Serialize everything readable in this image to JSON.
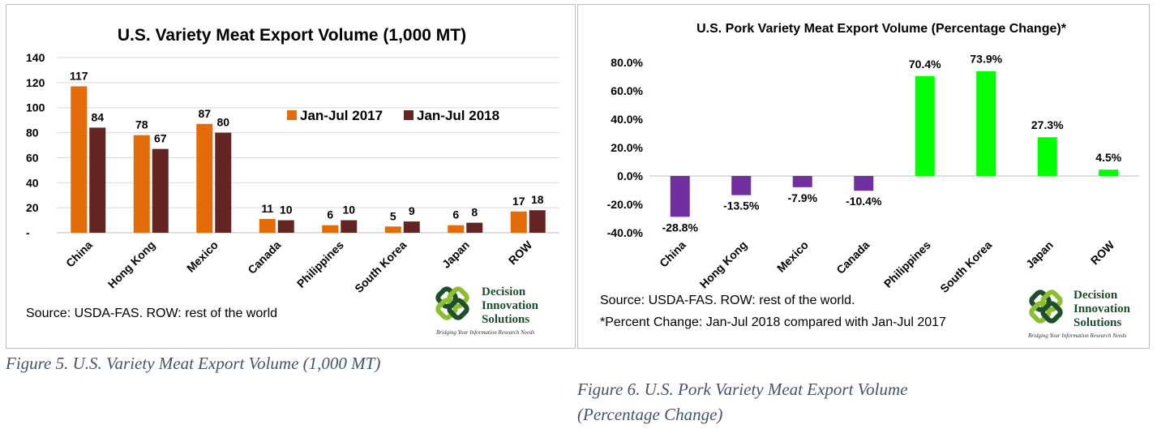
{
  "chart_data": [
    {
      "type": "bar",
      "title": "U.S. Variety Meat Export Volume (1,000 MT)",
      "categories": [
        "China",
        "Hong Kong",
        "Mexico",
        "Canada",
        "Philippines",
        "South Korea",
        "Japan",
        "ROW"
      ],
      "series": [
        {
          "name": "Jan-Jul 2017",
          "values": [
            117,
            78,
            87,
            11,
            6,
            5,
            6,
            17
          ],
          "color": "#e36c09"
        },
        {
          "name": "Jan-Jul 2018",
          "values": [
            84,
            67,
            80,
            10,
            10,
            9,
            8,
            18
          ],
          "color": "#632523"
        }
      ],
      "ylim": [
        0,
        140
      ],
      "yticks": [
        "-",
        "20",
        "40",
        "60",
        "80",
        "100",
        "120",
        "140"
      ],
      "grid": true,
      "legend": "top-right",
      "source": "Source: USDA-FAS. ROW: rest of the world"
    },
    {
      "type": "bar",
      "title": "U.S. Pork Variety Meat Export Volume (Percentage Change)*",
      "categories": [
        "China",
        "Hong Kong",
        "Mexico",
        "Canada",
        "Philippines",
        "South Korea",
        "Japan",
        "ROW"
      ],
      "values": [
        -28.8,
        -13.5,
        -7.9,
        -10.4,
        70.4,
        73.9,
        27.3,
        4.5
      ],
      "labels": [
        "-28.8%",
        "-13.5%",
        "-7.9%",
        "-10.4%",
        "70.4%",
        "73.9%",
        "27.3%",
        "4.5%"
      ],
      "negative_color": "#7030a0",
      "positive_color": "#00ff00",
      "ylim": [
        -40,
        80
      ],
      "yticks": [
        "-40.0%",
        "-20.0%",
        "0.0%",
        "20.0%",
        "40.0%",
        "60.0%",
        "80.0%"
      ],
      "grid": false,
      "source_lines": [
        "Source: USDA-FAS. ROW: rest of the world.",
        "*Percent Change: Jan-Jul 2018 compared with Jan-Jul 2017"
      ]
    }
  ],
  "logo": {
    "line1": "Decision",
    "line2": "Innovation",
    "line3": "Solutions",
    "tagline": "Bridging Your Information Research Needs"
  },
  "captions": {
    "fig5": "Figure 5. U.S. Variety Meat Export Volume (1,000 MT)",
    "fig6_line1": "Figure 6. U.S. Pork Variety Meat Export Volume",
    "fig6_line2": "(Percentage Change)"
  }
}
